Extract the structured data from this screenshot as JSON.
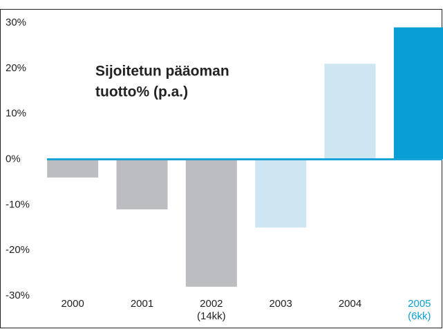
{
  "chart_data": {
    "type": "bar",
    "title": [
      "Sijoitetun pääoman",
      "tuotto% (p.a.)"
    ],
    "categories": [
      "2000",
      "2001",
      "2002",
      "2003",
      "2004",
      "2005"
    ],
    "category_notes": [
      null,
      null,
      "(14kk)",
      null,
      null,
      "(6kk)"
    ],
    "values": [
      -4,
      -11,
      -28,
      -15,
      21,
      29
    ],
    "colors": [
      "#bcbdc0",
      "#bcbdc0",
      "#bcbdc0",
      "#cde6f2",
      "#cde6f2",
      "#0a9fd4"
    ],
    "label_colors": [
      "#222222",
      "#222222",
      "#222222",
      "#222222",
      "#222222",
      "#0a9fd4"
    ],
    "zero_line_color": "#1aa3d6",
    "ylim": [
      -30,
      30
    ],
    "yticks": [
      {
        "value": -30,
        "label": "-30%"
      },
      {
        "value": -20,
        "label": "-20%"
      },
      {
        "value": -10,
        "label": "-10%"
      },
      {
        "value": 0,
        "label": "0%"
      },
      {
        "value": 10,
        "label": "10%"
      },
      {
        "value": 20,
        "label": "20%"
      },
      {
        "value": 30,
        "label": "30%"
      }
    ],
    "grid": false
  }
}
